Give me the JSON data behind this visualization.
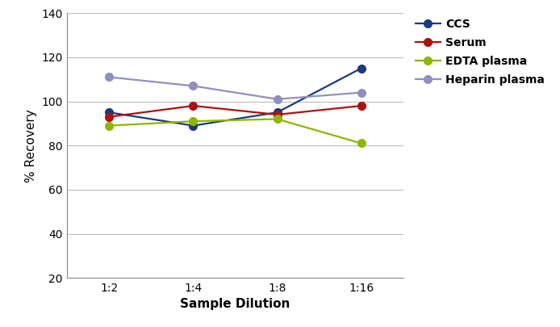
{
  "x_labels": [
    "1:2",
    "1:4",
    "1:8",
    "1:16"
  ],
  "x_values": [
    0,
    1,
    2,
    3
  ],
  "series": [
    {
      "label": "CCS",
      "color": "#1a3a7a",
      "values": [
        95,
        89,
        95,
        115
      ]
    },
    {
      "label": "Serum",
      "color": "#b01010",
      "values": [
        93,
        98,
        94,
        98
      ]
    },
    {
      "label": "EDTA plasma",
      "color": "#8db600",
      "values": [
        89,
        91,
        92,
        81
      ]
    },
    {
      "label": "Heparin plasma",
      "color": "#9090c0",
      "values": [
        111,
        107,
        101,
        104
      ]
    }
  ],
  "xlabel": "Sample Dilution",
  "ylabel": "% Recovery",
  "ylim": [
    20,
    140
  ],
  "yticks": [
    20,
    40,
    60,
    80,
    100,
    120,
    140
  ],
  "background_color": "#ffffff",
  "grid_color": "#bbbbbb",
  "marker": "o",
  "marker_size": 7,
  "linewidth": 1.6,
  "tick_fontsize": 10,
  "label_fontsize": 11,
  "legend_fontsize": 10
}
